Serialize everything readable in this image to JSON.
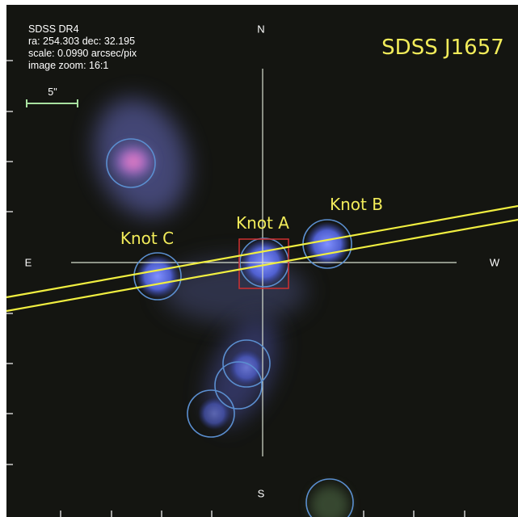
{
  "info": {
    "survey": "SDSS DR4",
    "coords": "ra: 254.303 dec: 32.195",
    "scale": "scale: 0.0990 arcsec/pix",
    "zoom": "image zoom: 16:1"
  },
  "scale_bar": "5\"",
  "compass": {
    "north": "N",
    "south": "S",
    "east": "E",
    "west": "W"
  },
  "object_name": "SDSS J1657",
  "knots": [
    {
      "label": "Knot A"
    },
    {
      "label": "Knot B"
    },
    {
      "label": "Knot C"
    }
  ]
}
